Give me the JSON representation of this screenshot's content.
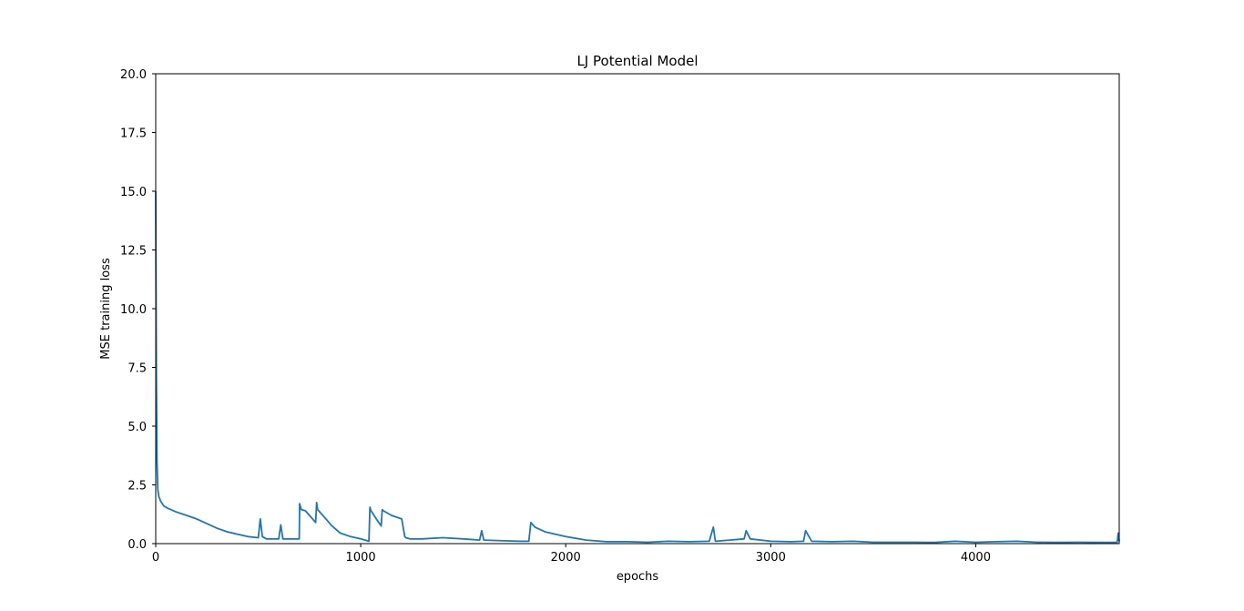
{
  "chart_data": {
    "type": "line",
    "title": "LJ Potential Model",
    "xlabel": "epochs",
    "ylabel": "MSE training loss",
    "xlim": [
      0,
      4700
    ],
    "ylim": [
      0,
      20
    ],
    "x_ticks": [
      0,
      1000,
      2000,
      3000,
      4000
    ],
    "x_tick_labels": [
      "0",
      "1000",
      "2000",
      "3000",
      "4000"
    ],
    "y_ticks": [
      0,
      2.5,
      5,
      7.5,
      10,
      12.5,
      15,
      17.5,
      20
    ],
    "y_tick_labels": [
      "0.0",
      "2.5",
      "5.0",
      "7.5",
      "10.0",
      "12.5",
      "15.0",
      "17.5",
      "20.0"
    ],
    "grid": false,
    "series": [
      {
        "color": "#1f77b4",
        "x": [
          0,
          3,
          6,
          10,
          15,
          25,
          40,
          60,
          100,
          150,
          200,
          250,
          300,
          350,
          400,
          450,
          500,
          510,
          520,
          540,
          600,
          610,
          620,
          650,
          700,
          702,
          710,
          730,
          760,
          780,
          785,
          790,
          820,
          860,
          900,
          950,
          1000,
          1040,
          1045,
          1050,
          1080,
          1100,
          1105,
          1110,
          1150,
          1200,
          1215,
          1220,
          1240,
          1300,
          1400,
          1500,
          1580,
          1590,
          1600,
          1700,
          1780,
          1820,
          1830,
          1850,
          1900,
          2000,
          2100,
          2200,
          2300,
          2400,
          2500,
          2600,
          2700,
          2720,
          2730,
          2800,
          2870,
          2880,
          2900,
          3000,
          3100,
          3160,
          3170,
          3200,
          3300,
          3400,
          3500,
          3600,
          3700,
          3800,
          3900,
          4000,
          4100,
          4200,
          4300,
          4400,
          4500,
          4600,
          4690,
          4695,
          4700
        ],
        "y": [
          15.0,
          7.0,
          3.5,
          2.3,
          2.0,
          1.8,
          1.6,
          1.5,
          1.35,
          1.2,
          1.05,
          0.85,
          0.65,
          0.5,
          0.4,
          0.3,
          0.25,
          1.05,
          0.3,
          0.2,
          0.2,
          0.8,
          0.2,
          0.2,
          0.2,
          1.7,
          1.45,
          1.4,
          1.1,
          0.9,
          1.75,
          1.45,
          1.15,
          0.75,
          0.45,
          0.3,
          0.2,
          0.1,
          1.55,
          1.4,
          1.0,
          0.75,
          1.45,
          1.4,
          1.2,
          1.05,
          0.3,
          0.25,
          0.2,
          0.2,
          0.25,
          0.2,
          0.15,
          0.55,
          0.15,
          0.12,
          0.1,
          0.1,
          0.9,
          0.7,
          0.5,
          0.3,
          0.15,
          0.08,
          0.08,
          0.06,
          0.1,
          0.08,
          0.1,
          0.7,
          0.1,
          0.15,
          0.2,
          0.55,
          0.2,
          0.1,
          0.08,
          0.1,
          0.55,
          0.1,
          0.08,
          0.1,
          0.06,
          0.06,
          0.06,
          0.05,
          0.1,
          0.06,
          0.08,
          0.1,
          0.06,
          0.05,
          0.06,
          0.05,
          0.05,
          0.45,
          0.1
        ]
      }
    ]
  }
}
